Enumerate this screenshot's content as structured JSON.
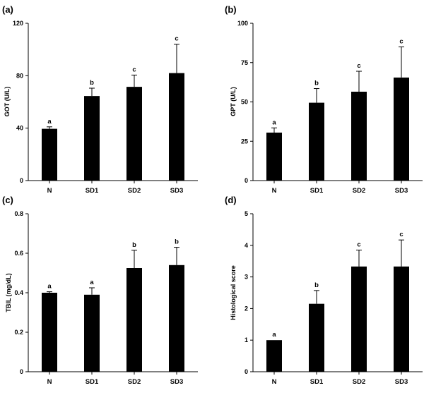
{
  "chart_data": [
    {
      "type": "bar",
      "panel": "(a)",
      "categories": [
        "N",
        "SD1",
        "SD2",
        "SD3"
      ],
      "values": [
        39.5,
        64.5,
        71.5,
        82
      ],
      "errors": [
        1.5,
        6,
        9,
        22
      ],
      "significance": [
        "a",
        "b",
        "c",
        "c"
      ],
      "ylabel": "GOT (U/L)",
      "ylim": [
        0,
        120
      ],
      "yticks": [
        0,
        40,
        80,
        120
      ]
    },
    {
      "type": "bar",
      "panel": "(b)",
      "categories": [
        "N",
        "SD1",
        "SD2",
        "SD3"
      ],
      "values": [
        30.5,
        49.5,
        56.5,
        65.5
      ],
      "errors": [
        3,
        9,
        13,
        19.5
      ],
      "significance": [
        "a",
        "b",
        "c",
        "c"
      ],
      "ylabel": "GPT (U/L)",
      "ylim": [
        0,
        100
      ],
      "yticks": [
        0,
        25,
        50,
        75,
        100
      ]
    },
    {
      "type": "bar",
      "panel": "(c)",
      "categories": [
        "N",
        "SD1",
        "SD2",
        "SD3"
      ],
      "values": [
        0.4,
        0.39,
        0.525,
        0.54
      ],
      "errors": [
        0.005,
        0.035,
        0.09,
        0.09
      ],
      "significance": [
        "a",
        "a",
        "b",
        "b"
      ],
      "ylabel": "TBIL (mg/dL)",
      "ylim": [
        0,
        0.8
      ],
      "yticks": [
        0,
        0.2,
        0.4,
        0.6,
        0.8
      ]
    },
    {
      "type": "bar",
      "panel": "(d)",
      "categories": [
        "N",
        "SD1",
        "SD2",
        "SD3"
      ],
      "values": [
        1.0,
        2.15,
        3.33,
        3.33
      ],
      "errors": [
        0,
        0.42,
        0.52,
        0.84
      ],
      "significance": [
        "a",
        "b",
        "c",
        "c"
      ],
      "ylabel": "Histological score",
      "ylim": [
        0,
        5
      ],
      "yticks": [
        0,
        1,
        2,
        3,
        4,
        5
      ]
    }
  ]
}
